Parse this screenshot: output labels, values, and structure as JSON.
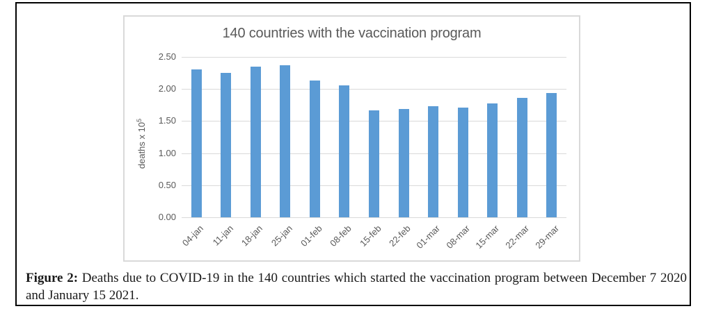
{
  "figure": {
    "caption_prefix": "Figure 2:",
    "caption_line1_rest": "Deaths due to COVID-19 in the 140 countries which started the vaccination program between December 7 2020",
    "caption_line2": "and January 15 2021."
  },
  "chart_data": {
    "type": "bar",
    "title": "140 countries with the vaccination program",
    "xlabel": "",
    "ylabel": "deaths x 10⁵",
    "ylabel_parts": {
      "base": "deaths x 10",
      "exp": "5"
    },
    "categories": [
      "04-jan",
      "11-jan",
      "18-jan",
      "25-jan",
      "01-feb",
      "08-feb",
      "15-feb",
      "22-feb",
      "01-mar",
      "08-mar",
      "15-mar",
      "22-mar",
      "29-mar"
    ],
    "values": [
      2.3,
      2.25,
      2.35,
      2.37,
      2.13,
      2.06,
      1.67,
      1.69,
      1.73,
      1.71,
      1.77,
      1.86,
      1.94
    ],
    "ylim": [
      0,
      2.5
    ],
    "ytick_step": 0.5,
    "ytick_labels": [
      "0.00",
      "0.50",
      "1.00",
      "1.50",
      "2.00",
      "2.50"
    ],
    "grid": true,
    "legend": false,
    "bar_color": "#5b9bd5",
    "gridline_color": "#d9d9d9",
    "axis_text_color": "#595959",
    "title_color": "#595959"
  }
}
